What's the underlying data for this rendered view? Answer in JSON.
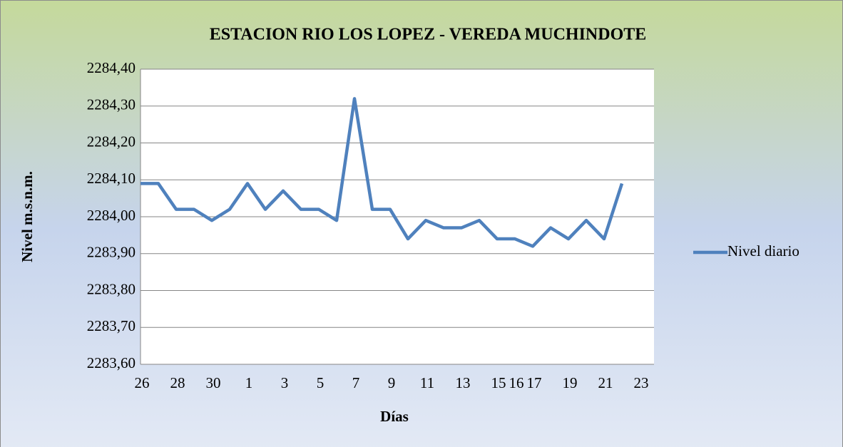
{
  "chart_data": {
    "type": "line",
    "title": "ESTACION RIO LOS LOPEZ - VEREDA MUCHINDOTE",
    "x_label": "Días",
    "y_label": "Nivel m.s.n.m.",
    "categories": [
      "26",
      null,
      "28",
      null,
      "30",
      null,
      "1",
      null,
      "3",
      null,
      "5",
      null,
      "7",
      null,
      "9",
      null,
      "11",
      null,
      "13",
      null,
      "15",
      "16",
      "17",
      null,
      "19",
      null,
      "21",
      null,
      "23"
    ],
    "series": [
      {
        "name": "Nivel diario",
        "color": "#4f81bd",
        "values": [
          2284.09,
          2284.09,
          2284.02,
          2284.02,
          2283.99,
          2284.02,
          2284.09,
          2284.02,
          2284.07,
          2284.02,
          2284.02,
          2283.99,
          2284.32,
          2284.02,
          2284.02,
          2283.94,
          2283.99,
          2283.97,
          2283.97,
          2283.99,
          2283.94,
          2283.94,
          2283.92,
          2283.97,
          2283.94,
          2283.99,
          2283.94,
          2284.09,
          null
        ]
      }
    ],
    "ylim": [
      2283.6,
      2284.4
    ],
    "yticks": [
      {
        "value": 2283.6,
        "label": "2283,60"
      },
      {
        "value": 2283.7,
        "label": "2283,70"
      },
      {
        "value": 2283.8,
        "label": "2283,80"
      },
      {
        "value": 2283.9,
        "label": "2283,90"
      },
      {
        "value": 2284.0,
        "label": "2284,00"
      },
      {
        "value": 2284.1,
        "label": "2284,10"
      },
      {
        "value": 2284.2,
        "label": "2284,20"
      },
      {
        "value": 2284.3,
        "label": "2284,30"
      },
      {
        "value": 2284.4,
        "label": "2284,40"
      }
    ],
    "grid": true,
    "legend": "right"
  }
}
